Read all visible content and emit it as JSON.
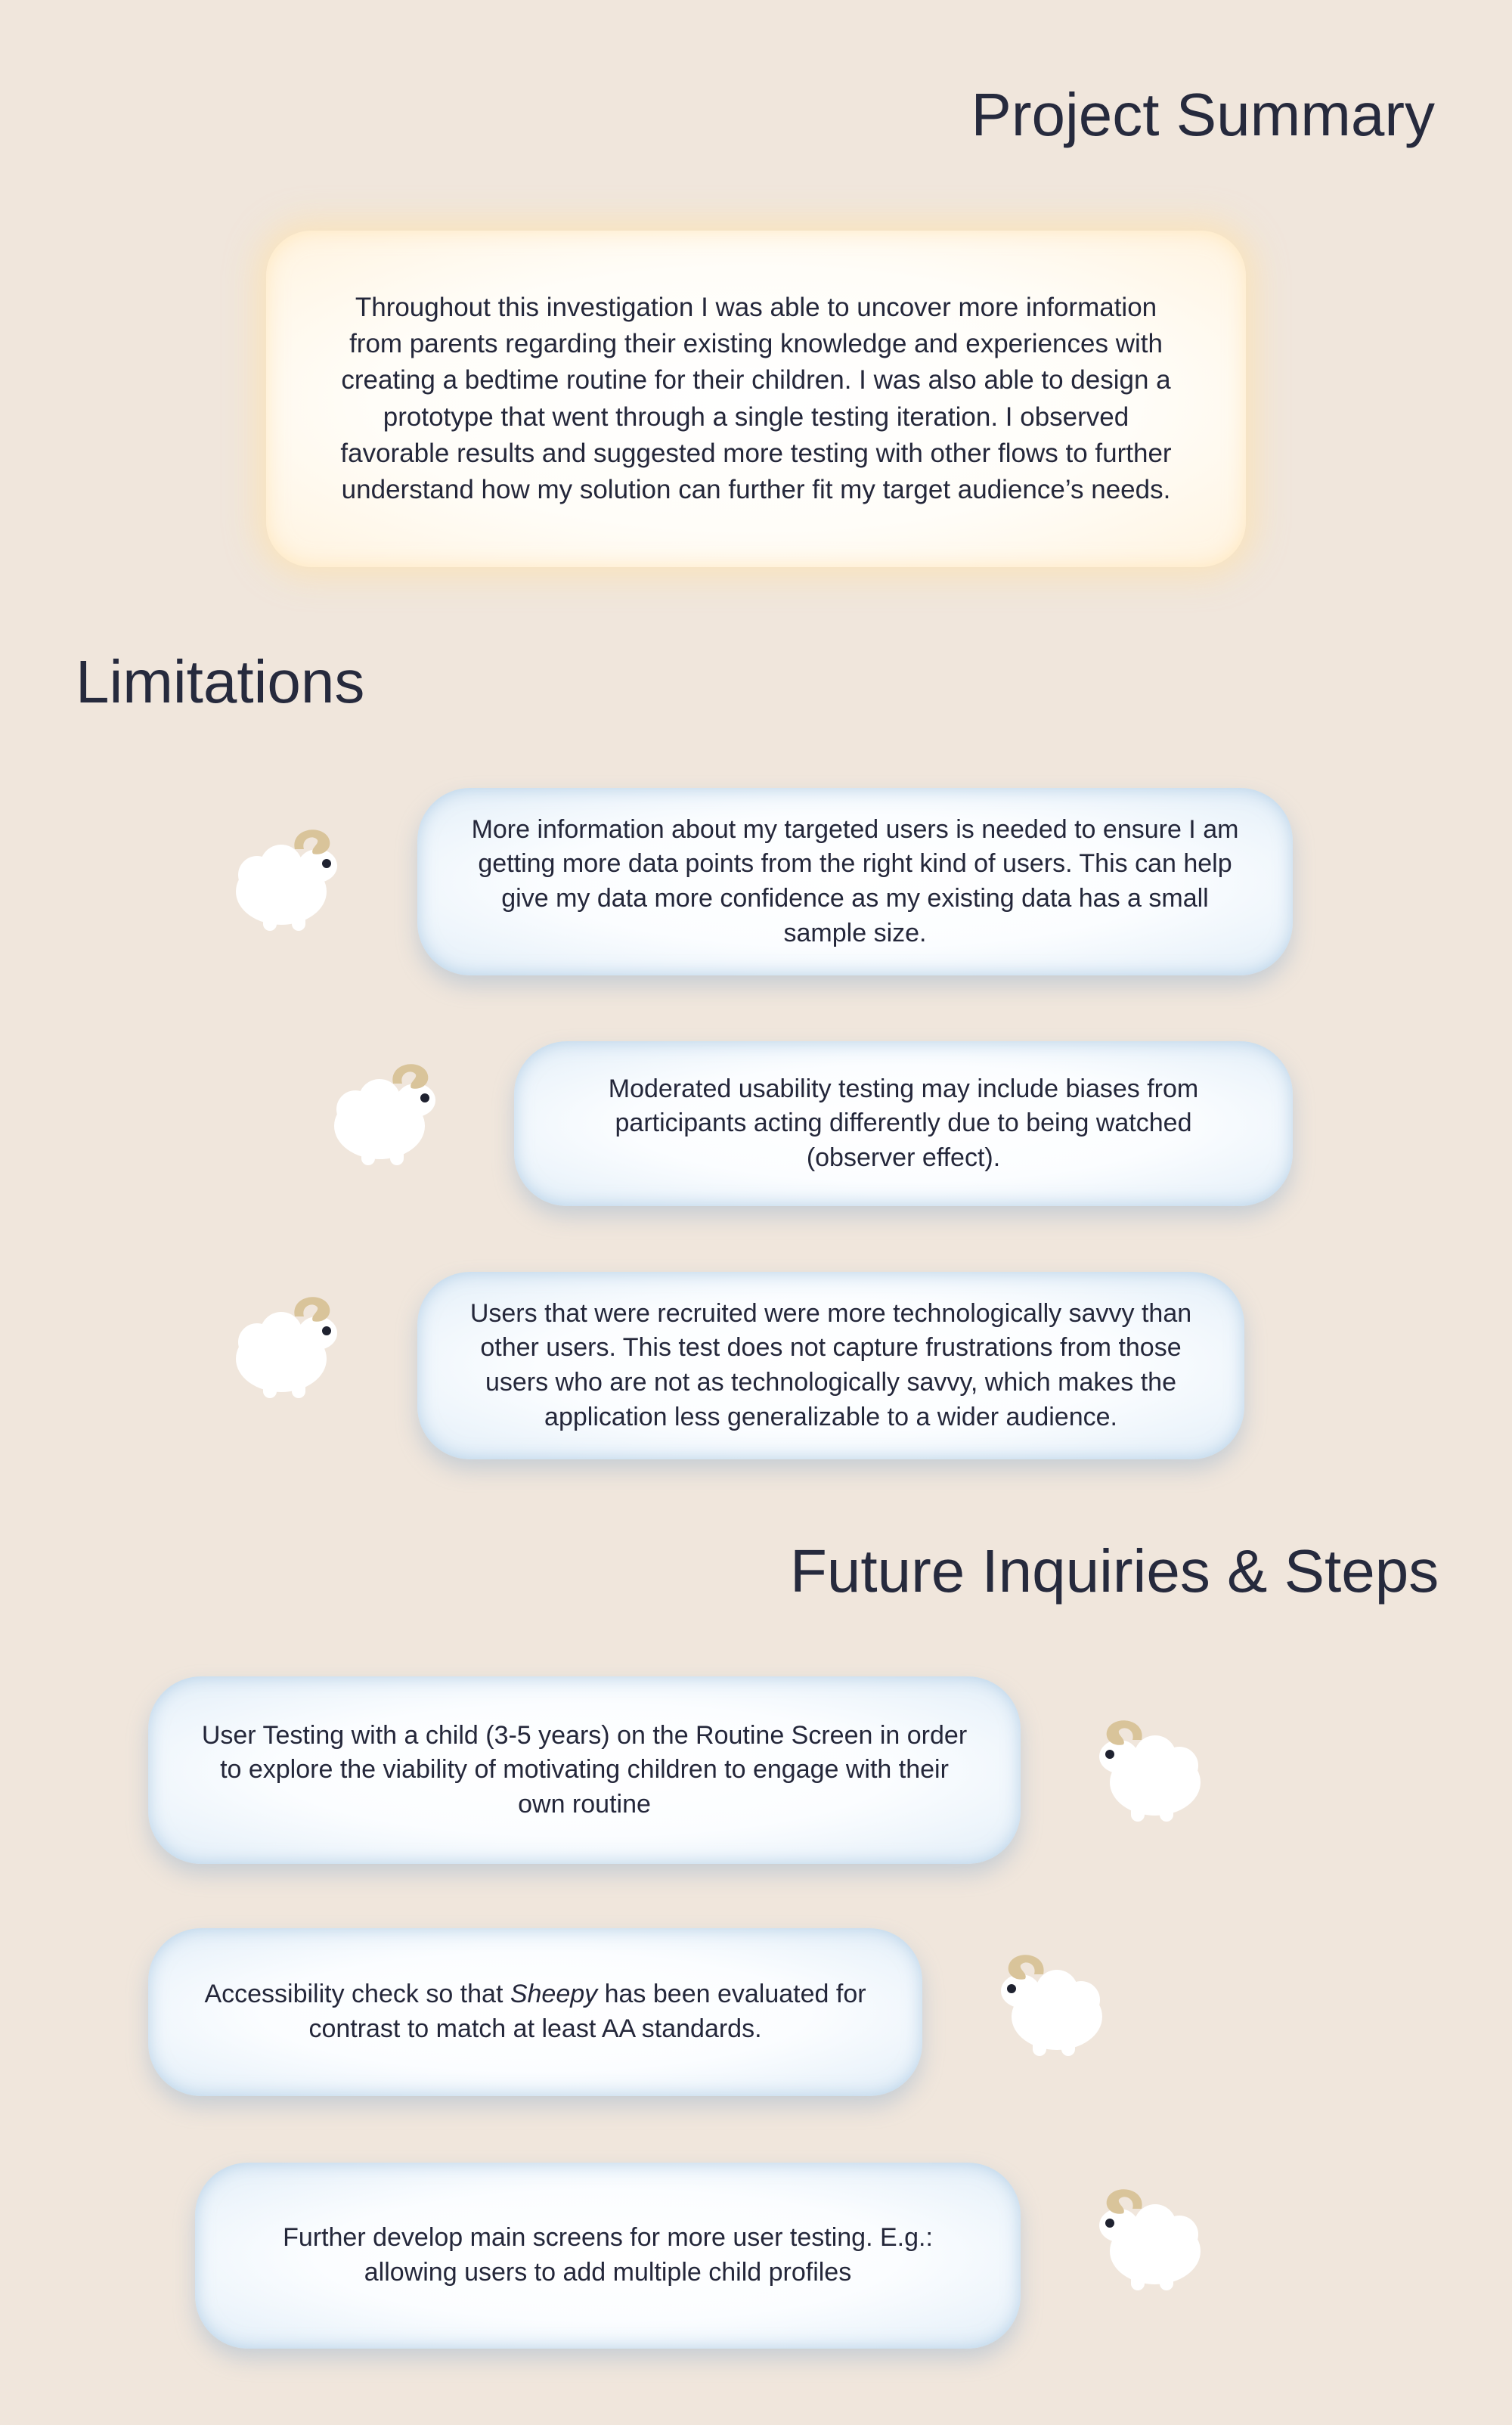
{
  "summary": {
    "title": "Project Summary",
    "text": "Throughout this investigation I was able to uncover more information from parents regarding their existing knowledge and experiences with creating a bedtime routine for their children. I was also able to design a prototype that went through a single testing iteration. I observed favorable results and suggested more testing with other flows to further understand how my solution can further fit my target audience’s needs."
  },
  "limitations": {
    "title": "Limitations",
    "items": [
      {
        "text": "More information about my targeted users is needed to ensure I am getting more data points from the right kind of users. This can help give my data more confidence as my existing data has a small sample size."
      },
      {
        "text": "Moderated usability testing may include biases from participants acting differently due to being watched (observer effect)."
      },
      {
        "text": "Users that were recruited were more technologically savvy than other users. This test does not capture frustrations from those users who are not as technologically savvy, which makes the application less generalizable to a wider audience."
      }
    ]
  },
  "future": {
    "title": "Future Inquiries & Steps",
    "items": [
      {
        "text": "User Testing with a child (3-5 years) on the Routine Screen in order to explore the viability of motivating children to engage with their own routine"
      },
      {
        "before": "Accessibility check so that ",
        "emphasis": "Sheepy",
        "after": " has been evaluated for contrast to match at least AA standards."
      },
      {
        "text": "Further develop main screens for more user testing. E.g.: allowing users to add multiple child profiles"
      }
    ]
  },
  "icons": {
    "sheep": "sheep-icon"
  },
  "colors": {
    "background": "#f0e6dc",
    "heading": "#262a3d",
    "summary_glow": "#ffe2aa",
    "card_glow": "#c9dcee",
    "sheep_body": "#ffffff",
    "sheep_horn": "#d9c49a"
  }
}
